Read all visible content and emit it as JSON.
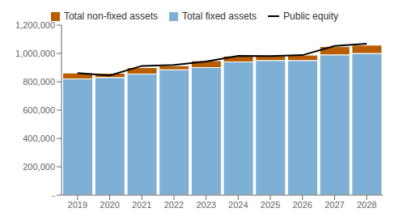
{
  "chart_data": {
    "type": "bar",
    "stacked": true,
    "grid": false,
    "legend": "top",
    "categories": [
      "2019",
      "2020",
      "2021",
      "2022",
      "2023",
      "2024",
      "2025",
      "2026",
      "2027",
      "2028"
    ],
    "series": [
      {
        "name": "Total fixed assets",
        "type": "bar",
        "color": "#7eafd4",
        "values": [
          820000,
          830000,
          855000,
          885000,
          900000,
          940000,
          950000,
          950000,
          990000,
          1000000
        ]
      },
      {
        "name": "Total non-fixed assets",
        "type": "bar",
        "color": "#b85c00",
        "values": [
          42000,
          30000,
          45000,
          28000,
          48000,
          42000,
          32000,
          38000,
          58000,
          58000
        ]
      },
      {
        "name": "Public equity",
        "type": "line",
        "color": "#000000",
        "values": [
          862000,
          845000,
          912000,
          918000,
          943000,
          983000,
          982000,
          988000,
          1053000,
          1068000
        ]
      }
    ],
    "ylim": [
      0,
      1200000
    ],
    "yticks": [
      {
        "value": 0,
        "label": "-"
      },
      {
        "value": 200000,
        "label": "200,000"
      },
      {
        "value": 400000,
        "label": "400,000"
      },
      {
        "value": 600000,
        "label": "600,000"
      },
      {
        "value": 800000,
        "label": "800,000"
      },
      {
        "value": 1000000,
        "label": "1,000,000"
      },
      {
        "value": 1200000,
        "label": "1,200,000"
      }
    ]
  }
}
